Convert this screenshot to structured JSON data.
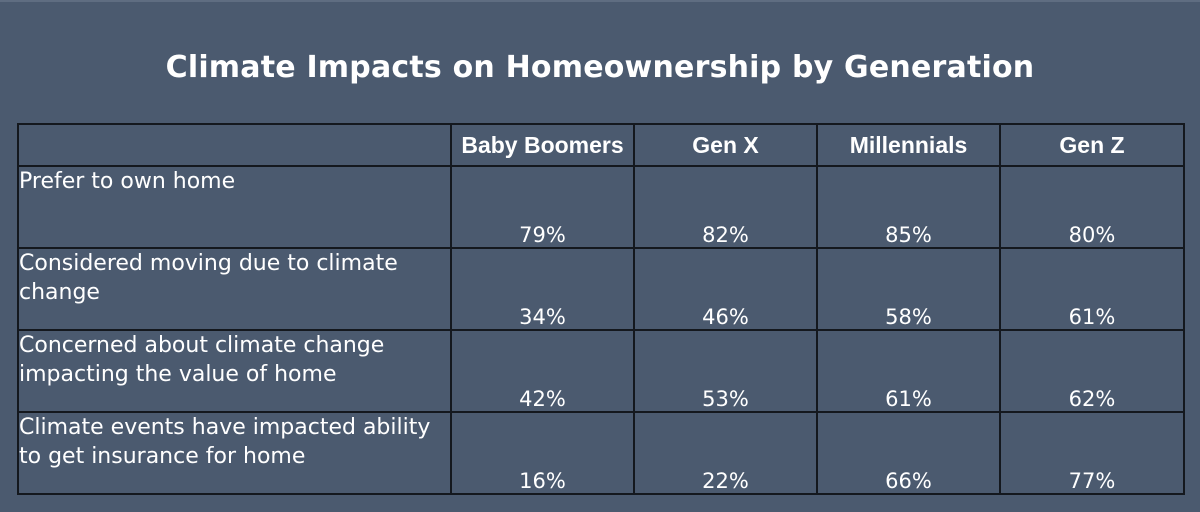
{
  "page": {
    "title": "Climate Impacts on Homeownership by Generation"
  },
  "chart_data": {
    "type": "table",
    "title": "Climate Impacts on Homeownership by Generation",
    "columns": [
      "",
      "Baby Boomers",
      "Gen X",
      "Millennials",
      "Gen Z"
    ],
    "rows": [
      {
        "label": "Prefer to own home",
        "values": [
          "79%",
          "82%",
          "85%",
          "80%"
        ]
      },
      {
        "label": "Considered moving due to climate change",
        "values": [
          "34%",
          "46%",
          "58%",
          "61%"
        ]
      },
      {
        "label": "Concerned about climate change impacting the value of home",
        "values": [
          "42%",
          "53%",
          "61%",
          "62%"
        ]
      },
      {
        "label": "Climate events have impacted ability to get insurance for home",
        "values": [
          "16%",
          "22%",
          "66%",
          "77%"
        ]
      }
    ]
  }
}
